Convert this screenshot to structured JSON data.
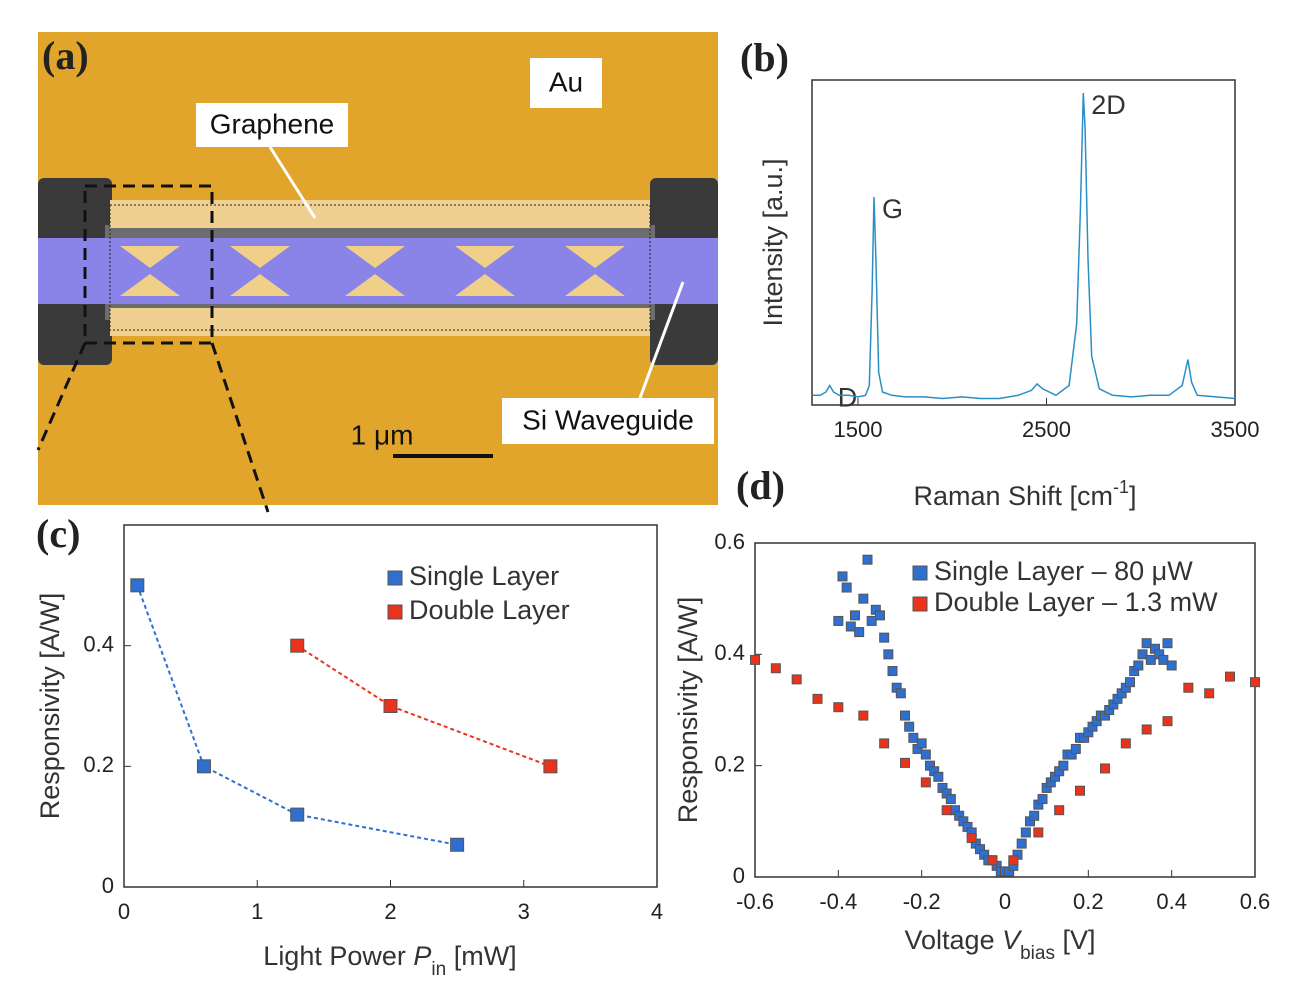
{
  "image": {
    "panel_label": "(a)",
    "labels": {
      "au": "Au",
      "graphene": "Graphene",
      "waveguide": "Si Waveguide",
      "scale": "1 μm"
    }
  },
  "chart_data": [
    {
      "type": "line",
      "panel_label": "(b)",
      "y_label": "Intensity [a.u.]",
      "x_label": [
        "Raman Shift [cm",
        "-1",
        "]"
      ],
      "color": "#2a8fc4",
      "xlim": [
        1256,
        3500
      ],
      "xticks": [
        1500,
        2500,
        3500
      ],
      "ylim": [
        0,
        1
      ],
      "annotations": [
        {
          "text": "D",
          "x": 1350,
          "y": 0.06
        },
        {
          "text": "G",
          "x": 1585,
          "y": 0.64
        },
        {
          "text": "2D",
          "x": 2695,
          "y": 0.96
        }
      ],
      "x": [
        1260,
        1300,
        1330,
        1350,
        1370,
        1400,
        1450,
        1500,
        1540,
        1560,
        1575,
        1585,
        1595,
        1610,
        1630,
        1680,
        1750,
        1850,
        1950,
        2050,
        2150,
        2250,
        2350,
        2420,
        2450,
        2480,
        2550,
        2620,
        2660,
        2680,
        2695,
        2705,
        2720,
        2740,
        2780,
        2850,
        2950,
        3050,
        3150,
        3220,
        3250,
        3270,
        3300,
        3400,
        3500
      ],
      "values": [
        0.03,
        0.03,
        0.04,
        0.06,
        0.04,
        0.03,
        0.03,
        0.025,
        0.03,
        0.06,
        0.35,
        0.64,
        0.45,
        0.1,
        0.04,
        0.03,
        0.025,
        0.025,
        0.02,
        0.025,
        0.02,
        0.02,
        0.03,
        0.045,
        0.065,
        0.05,
        0.03,
        0.06,
        0.25,
        0.6,
        0.96,
        0.85,
        0.45,
        0.15,
        0.05,
        0.03,
        0.025,
        0.03,
        0.03,
        0.06,
        0.14,
        0.07,
        0.03,
        0.025,
        0.02
      ]
    },
    {
      "type": "line",
      "panel_label": "(c)",
      "marker": "square",
      "line_style": "dashed",
      "y_label": "Responsivity [A/W]",
      "x_label": [
        "Light Power ",
        "P",
        "in",
        " [mW]"
      ],
      "xlim": [
        0,
        4
      ],
      "xticks": [
        0,
        1,
        2,
        3,
        4
      ],
      "ylim": [
        0,
        0.6
      ],
      "yticks": [
        0,
        0.2,
        0.4
      ],
      "series": [
        {
          "name": "Single Layer",
          "color": "#2f6fd0",
          "x": [
            0.1,
            0.6,
            1.3,
            2.5
          ],
          "values": [
            0.5,
            0.2,
            0.12,
            0.07
          ]
        },
        {
          "name": "Double Layer",
          "color": "#e8341c",
          "x": [
            1.3,
            2,
            3.2
          ],
          "values": [
            0.4,
            0.3,
            0.2
          ]
        }
      ]
    },
    {
      "type": "scatter",
      "panel_label": "(d)",
      "marker": "square",
      "y_label": "Responsivity [A/W]",
      "x_label": [
        "Voltage ",
        "V",
        "bias",
        " [V]"
      ],
      "xlim": [
        -0.6,
        0.6
      ],
      "xticks": [
        -0.6,
        -0.4,
        -0.2,
        0,
        0.2,
        0.4,
        0.6
      ],
      "ylim": [
        0,
        0.6
      ],
      "yticks": [
        0,
        0.2,
        0.4,
        0.6
      ],
      "series": [
        {
          "name": "Single Layer  – 80 μW",
          "color": "#2f6fd0",
          "x": [
            -0.4,
            -0.39,
            -0.38,
            -0.37,
            -0.36,
            -0.35,
            -0.34,
            -0.33,
            -0.32,
            -0.31,
            -0.3,
            -0.29,
            -0.28,
            -0.27,
            -0.26,
            -0.25,
            -0.24,
            -0.23,
            -0.22,
            -0.21,
            -0.2,
            -0.19,
            -0.18,
            -0.17,
            -0.16,
            -0.15,
            -0.14,
            -0.13,
            -0.12,
            -0.11,
            -0.1,
            -0.09,
            -0.08,
            -0.07,
            -0.06,
            -0.05,
            -0.04,
            -0.03,
            -0.02,
            -0.01,
            0,
            0.01,
            0.02,
            0.03,
            0.04,
            0.05,
            0.06,
            0.07,
            0.08,
            0.09,
            0.1,
            0.11,
            0.12,
            0.13,
            0.14,
            0.15,
            0.16,
            0.17,
            0.18,
            0.19,
            0.2,
            0.21,
            0.22,
            0.23,
            0.24,
            0.25,
            0.26,
            0.27,
            0.28,
            0.29,
            0.3,
            0.31,
            0.32,
            0.33,
            0.34,
            0.35,
            0.36,
            0.37,
            0.38,
            0.39,
            0.4
          ],
          "values": [
            0.46,
            0.54,
            0.52,
            0.45,
            0.47,
            0.44,
            0.5,
            0.57,
            0.46,
            0.48,
            0.47,
            0.43,
            0.4,
            0.37,
            0.34,
            0.33,
            0.29,
            0.27,
            0.25,
            0.23,
            0.24,
            0.22,
            0.2,
            0.19,
            0.18,
            0.16,
            0.15,
            0.14,
            0.12,
            0.11,
            0.1,
            0.09,
            0.08,
            0.06,
            0.05,
            0.04,
            0.03,
            0.03,
            0.02,
            0.01,
            0.01,
            0.01,
            0.02,
            0.04,
            0.06,
            0.08,
            0.1,
            0.11,
            0.13,
            0.14,
            0.16,
            0.17,
            0.18,
            0.19,
            0.2,
            0.22,
            0.22,
            0.23,
            0.25,
            0.25,
            0.26,
            0.27,
            0.28,
            0.29,
            0.29,
            0.3,
            0.31,
            0.32,
            0.33,
            0.34,
            0.35,
            0.37,
            0.38,
            0.4,
            0.42,
            0.39,
            0.41,
            0.4,
            0.39,
            0.42,
            0.38
          ]
        },
        {
          "name": "Double Layer – 1.3 mW",
          "color": "#e8341c",
          "x": [
            -0.6,
            -0.55,
            -0.5,
            -0.45,
            -0.4,
            -0.34,
            -0.29,
            -0.24,
            -0.19,
            -0.14,
            -0.08,
            -0.03,
            0.02,
            0.08,
            0.13,
            0.18,
            0.24,
            0.29,
            0.34,
            0.39,
            0.44,
            0.49,
            0.54,
            0.6
          ],
          "values": [
            0.39,
            0.375,
            0.355,
            0.32,
            0.305,
            0.29,
            0.24,
            0.205,
            0.17,
            0.12,
            0.07,
            0.03,
            0.03,
            0.08,
            0.12,
            0.155,
            0.195,
            0.24,
            0.265,
            0.28,
            0.34,
            0.33,
            0.36,
            0.35
          ]
        }
      ]
    }
  ]
}
